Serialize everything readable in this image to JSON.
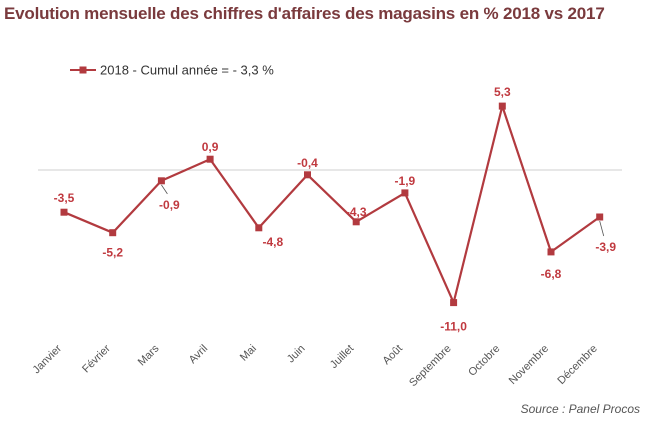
{
  "colors": {
    "title": "#7a3a3d",
    "series": "#b23a3f",
    "label": "#c0393f",
    "axis": "#cfcfcf",
    "text": "#555555"
  },
  "source": "Source : Panel Procos",
  "chart_data": {
    "type": "line",
    "title": "Evolution mensuelle des chiffres d'affaires des magasins en % 2018 vs 2017",
    "xlabel": "",
    "ylabel": "",
    "ylim": [
      -12,
      7
    ],
    "grid": false,
    "legend_position": "top-left",
    "categories": [
      "Janvier",
      "Février",
      "Mars",
      "Avril",
      "Mai",
      "Juin",
      "Juillet",
      "Août",
      "Septembre",
      "Octobre",
      "Novembre",
      "Décembre"
    ],
    "series": [
      {
        "name": "2018 - Cumul année = - 3,3 %",
        "values": [
          -3.5,
          -5.2,
          -0.9,
          0.9,
          -4.8,
          -0.4,
          -4.3,
          -1.9,
          -11.0,
          5.3,
          -6.8,
          -3.9
        ],
        "labels": [
          "-3,5",
          "-5,2",
          "-0,9",
          "0,9",
          "-4,8",
          "-0,4",
          "-4,3",
          "-1,9",
          "-11,0",
          "5,3",
          "-6,8",
          "-3,9"
        ]
      }
    ]
  }
}
